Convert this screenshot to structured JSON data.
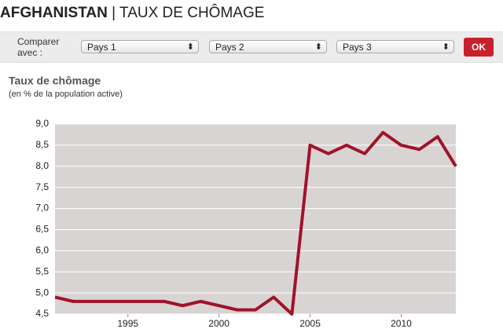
{
  "header": {
    "country": "AFGHANISTAN",
    "title": "| TAUX DE CHÔMAGE"
  },
  "controls": {
    "compare_label": "Comparer avec :",
    "selects": [
      "Pays 1",
      "Pays 2",
      "Pays 3"
    ],
    "button": "OK"
  },
  "chart_data": {
    "type": "line",
    "title": "Taux de chômage",
    "subtitle": "(en % de la population active)",
    "x": [
      1991,
      1992,
      1993,
      1994,
      1995,
      1996,
      1997,
      1998,
      1999,
      2000,
      2001,
      2002,
      2003,
      2004,
      2005,
      2006,
      2007,
      2008,
      2009,
      2010,
      2011,
      2012,
      2013
    ],
    "values": [
      4.9,
      4.8,
      4.8,
      4.8,
      4.8,
      4.8,
      4.8,
      4.7,
      4.8,
      4.7,
      4.6,
      4.6,
      4.9,
      4.5,
      8.5,
      8.3,
      8.5,
      8.3,
      8.8,
      8.5,
      8.4,
      8.7,
      8.0
    ],
    "color": "#a0132a",
    "xlim": [
      1991,
      2013
    ],
    "xticks": [
      1995,
      2000,
      2005,
      2010
    ],
    "ylim": [
      4.5,
      9.0
    ],
    "yticks": [
      {
        "value": 4.5,
        "label": "4,5"
      },
      {
        "value": 5.0,
        "label": "5,0"
      },
      {
        "value": 5.5,
        "label": "5,5"
      },
      {
        "value": 6.0,
        "label": "6,0"
      },
      {
        "value": 6.5,
        "label": "6,5"
      },
      {
        "value": 7.0,
        "label": "7,0"
      },
      {
        "value": 7.5,
        "label": "7,5"
      },
      {
        "value": 8.0,
        "label": "8,0"
      },
      {
        "value": 8.5,
        "label": "8,5"
      },
      {
        "value": 9.0,
        "label": "9,0"
      }
    ],
    "grid": true
  }
}
